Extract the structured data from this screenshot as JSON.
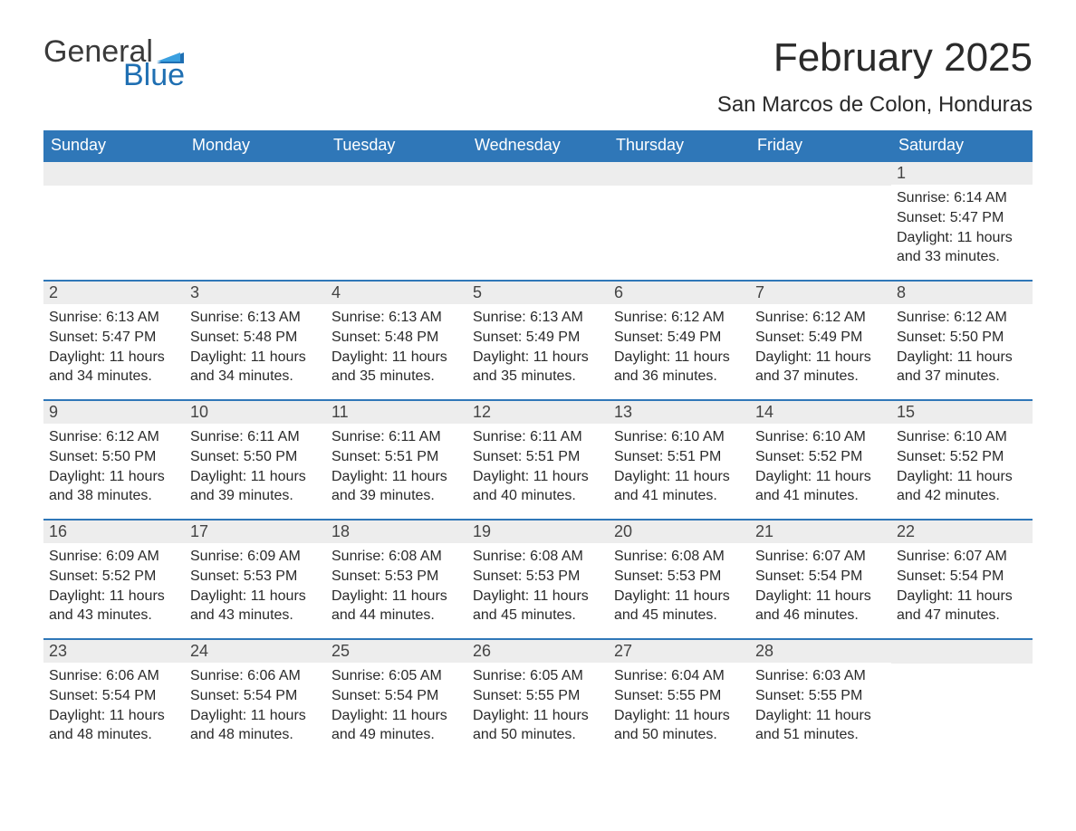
{
  "logo": {
    "text1": "General",
    "text2": "Blue"
  },
  "title": "February 2025",
  "location": "San Marcos de Colon, Honduras",
  "colors": {
    "header_bg": "#2f77b8",
    "header_text": "#ffffff",
    "daynum_bg": "#ededed",
    "row_border": "#2f77b8",
    "body_text": "#2a2a2a",
    "logo_blue": "#1f6fb2",
    "logo_gray": "#3a3a3a",
    "page_bg": "#ffffff"
  },
  "day_headers": [
    "Sunday",
    "Monday",
    "Tuesday",
    "Wednesday",
    "Thursday",
    "Friday",
    "Saturday"
  ],
  "weeks": [
    [
      null,
      null,
      null,
      null,
      null,
      null,
      {
        "n": "1",
        "sunrise": "6:14 AM",
        "sunset": "5:47 PM",
        "daylight": "11 hours and 33 minutes."
      }
    ],
    [
      {
        "n": "2",
        "sunrise": "6:13 AM",
        "sunset": "5:47 PM",
        "daylight": "11 hours and 34 minutes."
      },
      {
        "n": "3",
        "sunrise": "6:13 AM",
        "sunset": "5:48 PM",
        "daylight": "11 hours and 34 minutes."
      },
      {
        "n": "4",
        "sunrise": "6:13 AM",
        "sunset": "5:48 PM",
        "daylight": "11 hours and 35 minutes."
      },
      {
        "n": "5",
        "sunrise": "6:13 AM",
        "sunset": "5:49 PM",
        "daylight": "11 hours and 35 minutes."
      },
      {
        "n": "6",
        "sunrise": "6:12 AM",
        "sunset": "5:49 PM",
        "daylight": "11 hours and 36 minutes."
      },
      {
        "n": "7",
        "sunrise": "6:12 AM",
        "sunset": "5:49 PM",
        "daylight": "11 hours and 37 minutes."
      },
      {
        "n": "8",
        "sunrise": "6:12 AM",
        "sunset": "5:50 PM",
        "daylight": "11 hours and 37 minutes."
      }
    ],
    [
      {
        "n": "9",
        "sunrise": "6:12 AM",
        "sunset": "5:50 PM",
        "daylight": "11 hours and 38 minutes."
      },
      {
        "n": "10",
        "sunrise": "6:11 AM",
        "sunset": "5:50 PM",
        "daylight": "11 hours and 39 minutes."
      },
      {
        "n": "11",
        "sunrise": "6:11 AM",
        "sunset": "5:51 PM",
        "daylight": "11 hours and 39 minutes."
      },
      {
        "n": "12",
        "sunrise": "6:11 AM",
        "sunset": "5:51 PM",
        "daylight": "11 hours and 40 minutes."
      },
      {
        "n": "13",
        "sunrise": "6:10 AM",
        "sunset": "5:51 PM",
        "daylight": "11 hours and 41 minutes."
      },
      {
        "n": "14",
        "sunrise": "6:10 AM",
        "sunset": "5:52 PM",
        "daylight": "11 hours and 41 minutes."
      },
      {
        "n": "15",
        "sunrise": "6:10 AM",
        "sunset": "5:52 PM",
        "daylight": "11 hours and 42 minutes."
      }
    ],
    [
      {
        "n": "16",
        "sunrise": "6:09 AM",
        "sunset": "5:52 PM",
        "daylight": "11 hours and 43 minutes."
      },
      {
        "n": "17",
        "sunrise": "6:09 AM",
        "sunset": "5:53 PM",
        "daylight": "11 hours and 43 minutes."
      },
      {
        "n": "18",
        "sunrise": "6:08 AM",
        "sunset": "5:53 PM",
        "daylight": "11 hours and 44 minutes."
      },
      {
        "n": "19",
        "sunrise": "6:08 AM",
        "sunset": "5:53 PM",
        "daylight": "11 hours and 45 minutes."
      },
      {
        "n": "20",
        "sunrise": "6:08 AM",
        "sunset": "5:53 PM",
        "daylight": "11 hours and 45 minutes."
      },
      {
        "n": "21",
        "sunrise": "6:07 AM",
        "sunset": "5:54 PM",
        "daylight": "11 hours and 46 minutes."
      },
      {
        "n": "22",
        "sunrise": "6:07 AM",
        "sunset": "5:54 PM",
        "daylight": "11 hours and 47 minutes."
      }
    ],
    [
      {
        "n": "23",
        "sunrise": "6:06 AM",
        "sunset": "5:54 PM",
        "daylight": "11 hours and 48 minutes."
      },
      {
        "n": "24",
        "sunrise": "6:06 AM",
        "sunset": "5:54 PM",
        "daylight": "11 hours and 48 minutes."
      },
      {
        "n": "25",
        "sunrise": "6:05 AM",
        "sunset": "5:54 PM",
        "daylight": "11 hours and 49 minutes."
      },
      {
        "n": "26",
        "sunrise": "6:05 AM",
        "sunset": "5:55 PM",
        "daylight": "11 hours and 50 minutes."
      },
      {
        "n": "27",
        "sunrise": "6:04 AM",
        "sunset": "5:55 PM",
        "daylight": "11 hours and 50 minutes."
      },
      {
        "n": "28",
        "sunrise": "6:03 AM",
        "sunset": "5:55 PM",
        "daylight": "11 hours and 51 minutes."
      },
      null
    ]
  ],
  "labels": {
    "sunrise": "Sunrise:",
    "sunset": "Sunset:",
    "daylight": "Daylight:"
  }
}
